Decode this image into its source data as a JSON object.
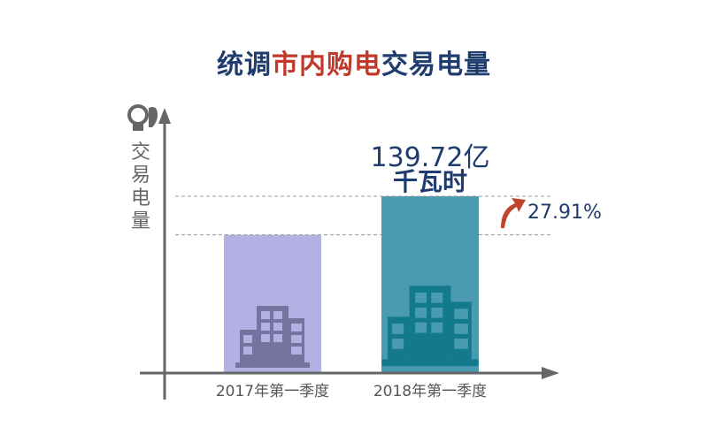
{
  "title": {
    "part1": "统调",
    "part2": "市内购电",
    "part3": "交易电量"
  },
  "colors": {
    "title_blue": "#1f3c6e",
    "title_red": "#c0392b",
    "bar_2017": "#b3b0e4",
    "bar_2018": "#4a9bb0",
    "building_2017": "#76749e",
    "building_2018": "#137a8e",
    "arrow": "#c0432d",
    "axis": "#666666"
  },
  "icons": {
    "axis_icon": "lightbulb-icon",
    "growth_icon": "curved-arrow-up-icon",
    "bar_icon": "buildings-icon"
  },
  "chart_data": {
    "type": "bar",
    "title": "统调市内购电交易电量",
    "ylabel": "交易电量",
    "categories": [
      "2017年第一季度",
      "2018年第一季度"
    ],
    "values": [
      109.23,
      139.72
    ],
    "value_label": {
      "number": "139.72亿",
      "unit": "千瓦时"
    },
    "growth": "27.91%",
    "ylim": [
      0,
      170
    ],
    "grid": false
  }
}
